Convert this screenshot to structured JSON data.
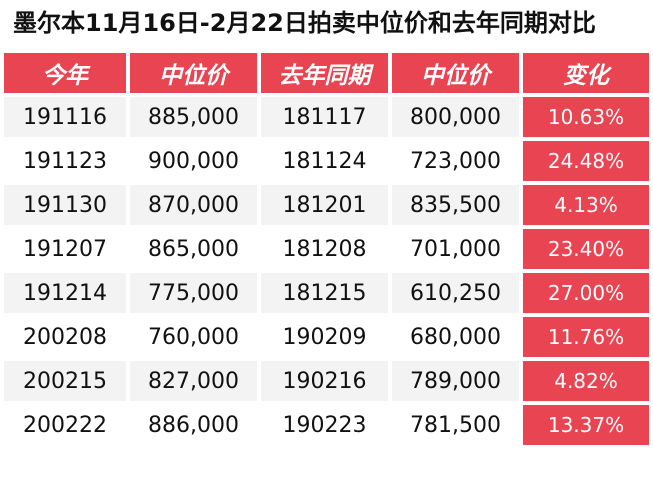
{
  "title": "墨尔本11月16日-2月22日拍卖中位价和去年同期对比",
  "headers": [
    "今年",
    "中位价",
    "去年同期",
    "中位价",
    "变化"
  ],
  "rows": [
    {
      "this_year": "191116",
      "median": "885,000",
      "last_year": "181117",
      "last_median": "800,000",
      "change": "10.63%"
    },
    {
      "this_year": "191123",
      "median": "900,000",
      "last_year": "181124",
      "last_median": "723,000",
      "change": "24.48%"
    },
    {
      "this_year": "191130",
      "median": "870,000",
      "last_year": "181201",
      "last_median": "835,500",
      "change": "4.13%"
    },
    {
      "this_year": "191207",
      "median": "865,000",
      "last_year": "181208",
      "last_median": "701,000",
      "change": "23.40%"
    },
    {
      "this_year": "191214",
      "median": "775,000",
      "last_year": "181215",
      "last_median": "610,250",
      "change": "27.00%"
    },
    {
      "this_year": "200208",
      "median": "760,000",
      "last_year": "190209",
      "last_median": "680,000",
      "change": "11.76%"
    },
    {
      "this_year": "200215",
      "median": "827,000",
      "last_year": "190216",
      "last_median": "789,000",
      "change": "4.82%"
    },
    {
      "this_year": "200222",
      "median": "886,000",
      "last_year": "190223",
      "last_median": "781,500",
      "change": "13.37%"
    }
  ],
  "colors": {
    "header_bg": "#e84452",
    "change_bg": "#e84452",
    "stripe_bg": "#f3f3f3"
  }
}
